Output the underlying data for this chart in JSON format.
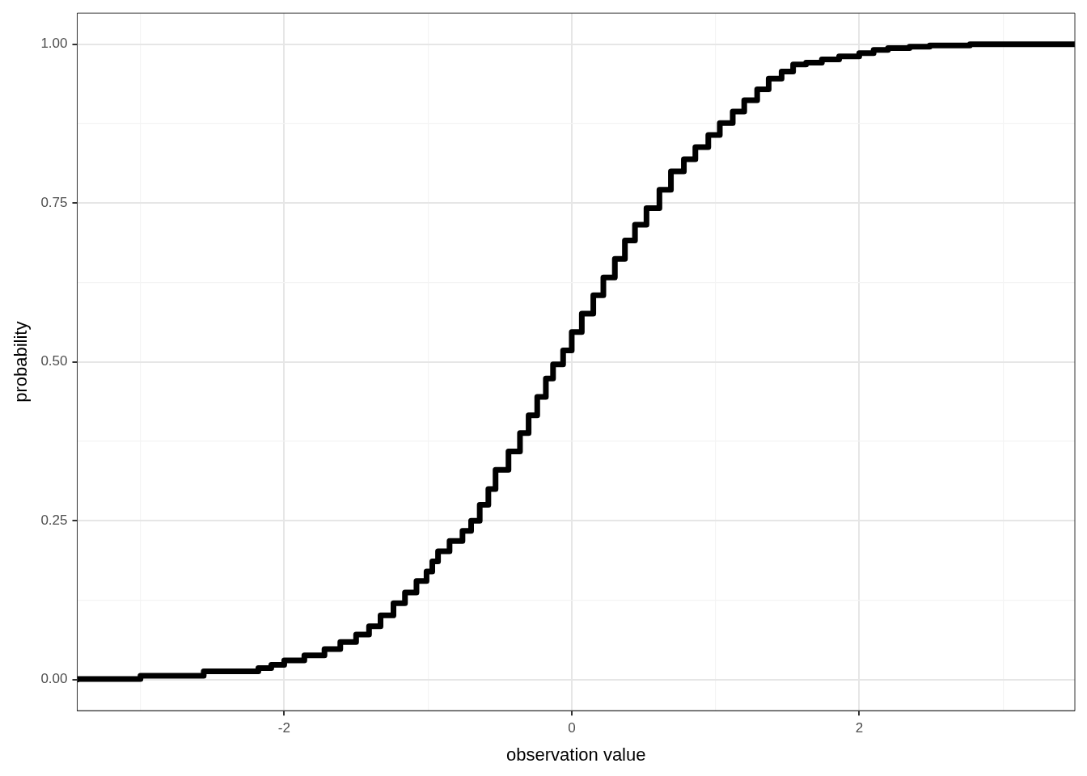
{
  "chart_data": {
    "type": "step",
    "xlabel": "observation value",
    "ylabel": "probability",
    "xlim": [
      -3.44,
      3.5
    ],
    "ylim": [
      -0.049,
      1.049
    ],
    "xticks": [
      {
        "value": -3,
        "label": null
      },
      -2,
      {
        "value": -1,
        "label": null
      },
      0,
      {
        "value": 1,
        "label": null
      },
      2,
      {
        "value": 3,
        "label": null
      }
    ],
    "yticks": [
      {
        "value": 0,
        "label": "0.00"
      },
      {
        "value": 0.125,
        "label": null
      },
      {
        "value": 0.25,
        "label": "0.25"
      },
      {
        "value": 0.375,
        "label": null
      },
      {
        "value": 0.5,
        "label": "0.50"
      },
      {
        "value": 0.625,
        "label": null
      },
      {
        "value": 0.75,
        "label": "0.75"
      },
      {
        "value": 0.875,
        "label": null
      },
      {
        "value": 1,
        "label": "1.00"
      }
    ],
    "grid": true,
    "legend": false,
    "marker": "none",
    "line_style": "solid",
    "series": [
      {
        "color": "#000000",
        "x": [
          -3.44,
          -3.0,
          -2.56,
          -2.18,
          -2.09,
          -2.0,
          -1.86,
          -1.72,
          -1.61,
          -1.5,
          -1.41,
          -1.33,
          -1.24,
          -1.16,
          -1.08,
          -1.01,
          -0.97,
          -0.93,
          -0.85,
          -0.76,
          -0.7,
          -0.64,
          -0.58,
          -0.53,
          -0.44,
          -0.36,
          -0.3,
          -0.24,
          -0.18,
          -0.13,
          -0.06,
          0,
          0.07,
          0.15,
          0.22,
          0.3,
          0.37,
          0.44,
          0.52,
          0.61,
          0.69,
          0.78,
          0.86,
          0.95,
          1.03,
          1.12,
          1.2,
          1.29,
          1.37,
          1.46,
          1.54,
          1.63,
          1.74,
          1.86,
          2.0,
          2.1,
          2.2,
          2.35,
          2.49,
          2.77,
          3.5
        ],
        "values": [
          0,
          0.001,
          0.006,
          0.013,
          0.018,
          0.023,
          0.03,
          0.038,
          0.048,
          0.059,
          0.071,
          0.084,
          0.101,
          0.12,
          0.137,
          0.155,
          0.17,
          0.186,
          0.202,
          0.218,
          0.234,
          0.25,
          0.275,
          0.3,
          0.33,
          0.359,
          0.388,
          0.416,
          0.445,
          0.474,
          0.496,
          0.518,
          0.547,
          0.576,
          0.605,
          0.633,
          0.662,
          0.691,
          0.716,
          0.742,
          0.771,
          0.8,
          0.819,
          0.838,
          0.857,
          0.876,
          0.894,
          0.912,
          0.929,
          0.946,
          0.957,
          0.968,
          0.971,
          0.976,
          0.981,
          0.986,
          0.991,
          0.994,
          0.996,
          0.998,
          1.0
        ]
      }
    ]
  }
}
